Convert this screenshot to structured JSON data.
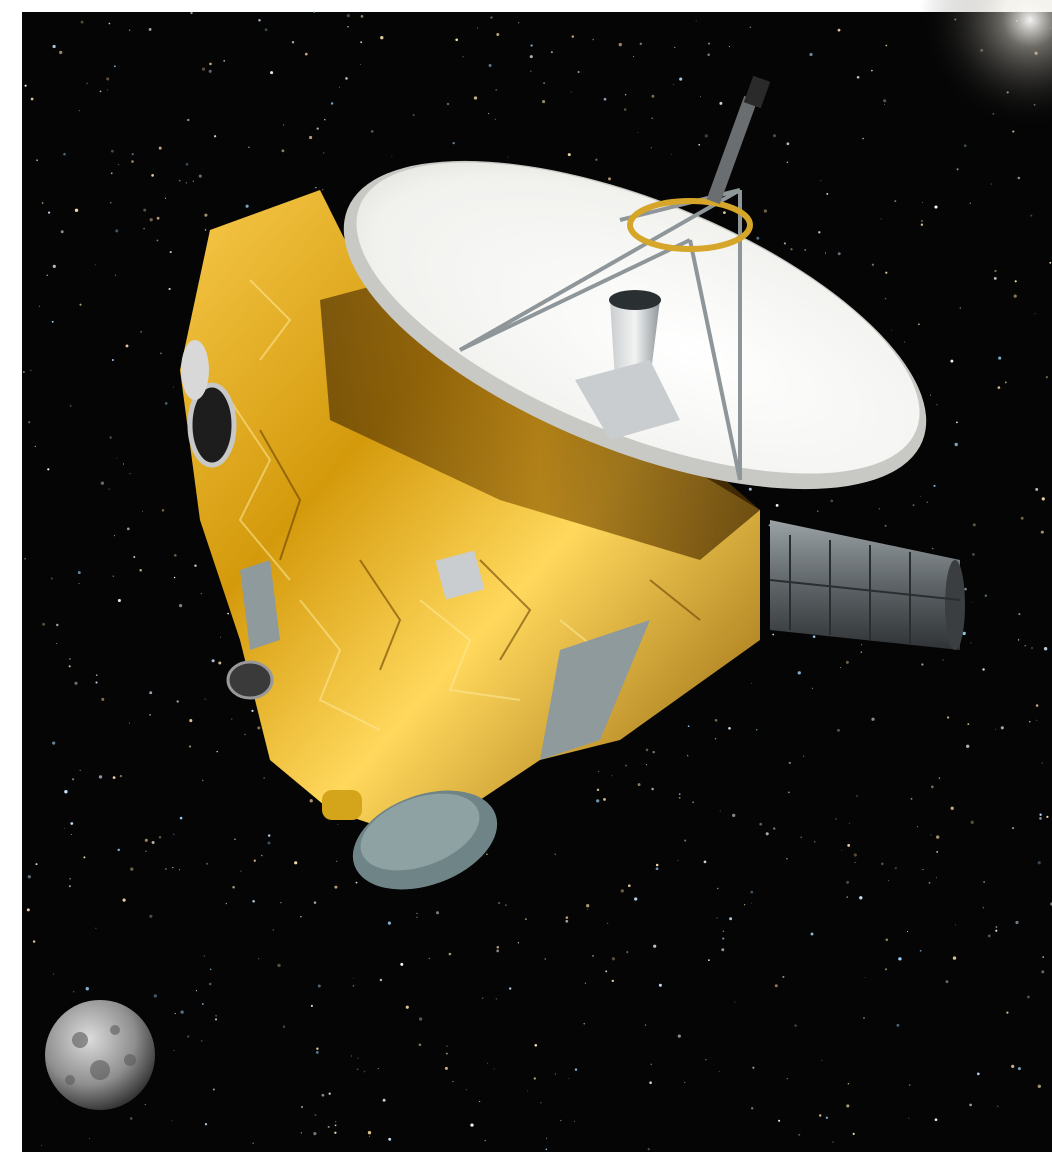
{
  "scene": {
    "subject": "spacecraft",
    "elements": [
      "space-background",
      "starfield",
      "sun-glare",
      "high-gain-antenna-dish",
      "spacecraft-body",
      "rtg-power-unit",
      "distant-moon"
    ]
  },
  "colors": {
    "space": "#050505",
    "foil_gold": "#d49a0c",
    "foil_highlight": "#ffe27a",
    "foil_shadow": "#5a3a05",
    "dish": "#f4f4f2",
    "instrument_gray": "#8f9a9c",
    "rtg_gray": "#6d7275",
    "moon": "#9a9a9a"
  }
}
